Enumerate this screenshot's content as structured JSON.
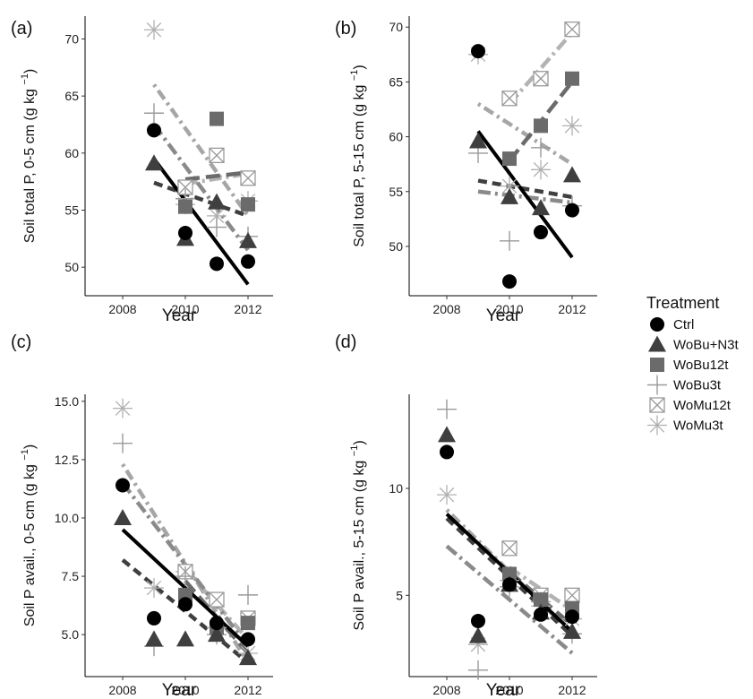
{
  "legend": {
    "title": "Treatment",
    "placement": "right",
    "items": [
      {
        "key": "Ctrl",
        "label": "Ctrl",
        "shape": "circle",
        "color": "#000000",
        "line": "solid",
        "lineColor": "#000000"
      },
      {
        "key": "WoBuN3t",
        "label": "WoBu+N3t",
        "shape": "triangle",
        "color": "#3f3f3f",
        "line": "dashed",
        "lineColor": "#3f3f3f"
      },
      {
        "key": "WoBu12t",
        "label": "WoBu12t",
        "shape": "square",
        "color": "#6b6b6b",
        "line": "dashed-long",
        "lineColor": "#6b6b6b"
      },
      {
        "key": "WoBu3t",
        "label": "WoBu3t",
        "shape": "plus",
        "color": "#9a9a9a",
        "line": "dashdot",
        "lineColor": "#8a8a8a"
      },
      {
        "key": "WoMu12t",
        "label": "WoMu12t",
        "shape": "boxcross",
        "color": "#9a9a9a",
        "line": "dashdot",
        "lineColor": "#b3b3b3"
      },
      {
        "key": "WoMu3t",
        "label": "WoMu3t",
        "shape": "asterisk",
        "color": "#b0b0b0",
        "line": "dotdash",
        "lineColor": "#a6a6a6"
      }
    ]
  },
  "chart_data": [
    {
      "type": "scatter",
      "panel": "(a)",
      "ylabel": "Soil total P, 0-5 cm",
      "yunit": "(g kg",
      "yunit_exp": "−1",
      "yunit_close": ")",
      "xlabel": "Year",
      "xlim": [
        2006.8,
        2012.8
      ],
      "ylim": [
        47.5,
        72
      ],
      "xticks": [
        2008,
        2010,
        2012
      ],
      "yticks": [
        50,
        55,
        60,
        65,
        70
      ],
      "series": [
        {
          "key": "Ctrl",
          "points": [
            [
              2009,
              62
            ],
            [
              2010,
              53
            ],
            [
              2011,
              50.3
            ],
            [
              2012,
              50.5
            ]
          ],
          "fit": [
            [
              2009,
              59.5
            ],
            [
              2012,
              48.5
            ]
          ]
        },
        {
          "key": "WoBuN3t",
          "points": [
            [
              2009,
              59.1
            ],
            [
              2010,
              52.5
            ],
            [
              2011,
              55.7
            ],
            [
              2012,
              52.3
            ]
          ],
          "fit": [
            [
              2009,
              57.4
            ],
            [
              2012,
              54.5
            ]
          ]
        },
        {
          "key": "WoBu12t",
          "points": [
            [
              2010,
              55.3
            ],
            [
              2011,
              63
            ],
            [
              2012,
              55.5
            ]
          ],
          "fit": [
            [
              2010,
              57.7
            ],
            [
              2012,
              58.3
            ]
          ]
        },
        {
          "key": "WoBu3t",
          "points": [
            [
              2009,
              63.5
            ],
            [
              2010,
              56
            ],
            [
              2011,
              53.5
            ],
            [
              2012,
              52.7
            ]
          ],
          "fit": [
            [
              2009,
              62.5
            ],
            [
              2012,
              51.5
            ]
          ]
        },
        {
          "key": "WoMu12t",
          "points": [
            [
              2010,
              57
            ],
            [
              2011,
              59.8
            ],
            [
              2012,
              57.8
            ]
          ],
          "fit": [
            [
              2010,
              57.3
            ],
            [
              2012,
              58.2
            ]
          ]
        },
        {
          "key": "WoMu3t",
          "points": [
            [
              2009,
              70.8
            ],
            [
              2010,
              55.5
            ],
            [
              2011,
              54.5
            ],
            [
              2012,
              55.8
            ]
          ],
          "fit": [
            [
              2009,
              66
            ],
            [
              2012,
              54.5
            ]
          ]
        }
      ]
    },
    {
      "type": "scatter",
      "panel": "(b)",
      "ylabel": "Soil total P, 5-15 cm",
      "yunit": "(g kg",
      "yunit_exp": "−1",
      "yunit_close": ")",
      "xlabel": "Year",
      "xlim": [
        2006.8,
        2012.8
      ],
      "ylim": [
        45.5,
        71
      ],
      "xticks": [
        2008,
        2010,
        2012
      ],
      "yticks": [
        50,
        55,
        60,
        65,
        70
      ],
      "series": [
        {
          "key": "Ctrl",
          "points": [
            [
              2009,
              67.8
            ],
            [
              2010,
              46.8
            ],
            [
              2011,
              51.3
            ],
            [
              2012,
              53.3
            ]
          ],
          "fit": [
            [
              2009,
              60.5
            ],
            [
              2012,
              49
            ]
          ]
        },
        {
          "key": "WoBuN3t",
          "points": [
            [
              2009,
              59.6
            ],
            [
              2010,
              54.5
            ],
            [
              2011,
              53.5
            ],
            [
              2012,
              56.5
            ]
          ],
          "fit": [
            [
              2009,
              56
            ],
            [
              2012,
              54.5
            ]
          ]
        },
        {
          "key": "WoBu12t",
          "points": [
            [
              2010,
              58
            ],
            [
              2011,
              61
            ],
            [
              2012,
              65.3
            ]
          ],
          "fit": [
            [
              2010,
              57.8
            ],
            [
              2012,
              65
            ]
          ]
        },
        {
          "key": "WoBu3t",
          "points": [
            [
              2009,
              58.5
            ],
            [
              2010,
              50.5
            ],
            [
              2011,
              59
            ],
            [
              2012,
              53.7
            ]
          ],
          "fit": [
            [
              2009,
              55
            ],
            [
              2012,
              54
            ]
          ]
        },
        {
          "key": "WoMu12t",
          "points": [
            [
              2010,
              63.5
            ],
            [
              2011,
              65.3
            ],
            [
              2012,
              69.8
            ]
          ],
          "fit": [
            [
              2010,
              63
            ],
            [
              2012,
              69.5
            ]
          ]
        },
        {
          "key": "WoMu3t",
          "points": [
            [
              2009,
              67.5
            ],
            [
              2010,
              55.5
            ],
            [
              2011,
              57
            ],
            [
              2012,
              61
            ]
          ],
          "fit": [
            [
              2009,
              63
            ],
            [
              2012,
              57.5
            ]
          ]
        }
      ]
    },
    {
      "type": "scatter",
      "panel": "(c)",
      "ylabel": "Soil P avail., 0-5 cm",
      "yunit": "(g kg",
      "yunit_exp": "−1",
      "yunit_close": ")",
      "xlabel": "Year",
      "xlim": [
        2006.8,
        2012.8
      ],
      "ylim": [
        3.2,
        15.3
      ],
      "xticks": [
        2008,
        2010,
        2012
      ],
      "yticks": [
        5.0,
        7.5,
        10.0,
        12.5,
        15.0
      ],
      "ytickFormat": "1",
      "series": [
        {
          "key": "Ctrl",
          "points": [
            [
              2008,
              11.4
            ],
            [
              2009,
              5.7
            ],
            [
              2010,
              6.3
            ],
            [
              2011,
              5.5
            ],
            [
              2012,
              4.8
            ]
          ],
          "fit": [
            [
              2008,
              9.5
            ],
            [
              2012,
              4.5
            ]
          ]
        },
        {
          "key": "WoBuN3t",
          "points": [
            [
              2008,
              10
            ],
            [
              2009,
              4.8
            ],
            [
              2010,
              4.8
            ],
            [
              2011,
              5
            ],
            [
              2012,
              4
            ]
          ],
          "fit": [
            [
              2008,
              8.2
            ],
            [
              2012,
              3.8
            ]
          ]
        },
        {
          "key": "WoBu12t",
          "points": [
            [
              2010,
              6.7
            ],
            [
              2011,
              5.3
            ],
            [
              2012,
              5.5
            ]
          ],
          "fit": [
            [
              2010,
              7.3
            ],
            [
              2012,
              4.2
            ]
          ]
        },
        {
          "key": "WoBu3t",
          "points": [
            [
              2008,
              13.2
            ],
            [
              2009,
              4.5
            ],
            [
              2010,
              7.5
            ],
            [
              2011,
              5
            ],
            [
              2012,
              6.7
            ]
          ],
          "fit": [
            [
              2008,
              11.5
            ],
            [
              2012,
              4.5
            ]
          ]
        },
        {
          "key": "WoMu12t",
          "points": [
            [
              2010,
              7.7
            ],
            [
              2011,
              6.5
            ],
            [
              2012,
              5.7
            ]
          ],
          "fit": [
            [
              2010,
              7.8
            ],
            [
              2012,
              4.8
            ]
          ]
        },
        {
          "key": "WoMu3t",
          "points": [
            [
              2008,
              14.7
            ],
            [
              2009,
              7
            ],
            [
              2010,
              7.7
            ],
            [
              2011,
              5.3
            ],
            [
              2012,
              4.2
            ]
          ],
          "fit": [
            [
              2008,
              12.3
            ],
            [
              2012,
              3.8
            ]
          ]
        }
      ]
    },
    {
      "type": "scatter",
      "panel": "(d)",
      "ylabel": "Soil P avail., 5-15 cm",
      "yunit": "(g kg",
      "yunit_exp": "−1",
      "yunit_close": ")",
      "xlabel": "Year",
      "xlim": [
        2006.8,
        2012.8
      ],
      "ylim": [
        1.2,
        14.4
      ],
      "xticks": [
        2008,
        2010,
        2012
      ],
      "yticks": [
        5,
        10
      ],
      "series": [
        {
          "key": "Ctrl",
          "points": [
            [
              2008,
              11.7
            ],
            [
              2009,
              3.8
            ],
            [
              2010,
              5.5
            ],
            [
              2011,
              4.1
            ],
            [
              2012,
              4
            ]
          ],
          "fit": [
            [
              2008,
              8.8
            ],
            [
              2012,
              3.3
            ]
          ]
        },
        {
          "key": "WoBuN3t",
          "points": [
            [
              2008,
              12.5
            ],
            [
              2009,
              3.1
            ],
            [
              2010,
              5.5
            ],
            [
              2011,
              4.2
            ],
            [
              2012,
              3.3
            ]
          ],
          "fit": [
            [
              2008,
              8.6
            ],
            [
              2012,
              3.1
            ]
          ]
        },
        {
          "key": "WoBu12t",
          "points": [
            [
              2010,
              6
            ],
            [
              2011,
              4.8
            ],
            [
              2012,
              4.4
            ]
          ],
          "fit": [
            [
              2010,
              6.1
            ],
            [
              2012,
              3.6
            ]
          ]
        },
        {
          "key": "WoBu3t",
          "points": [
            [
              2008,
              13.7
            ],
            [
              2009,
              1.5
            ],
            [
              2010,
              5.4
            ],
            [
              2011,
              4.7
            ],
            [
              2012,
              3.2
            ]
          ],
          "fit": [
            [
              2008,
              7.3
            ],
            [
              2012,
              2.3
            ]
          ]
        },
        {
          "key": "WoMu12t",
          "points": [
            [
              2010,
              7.2
            ],
            [
              2011,
              5
            ],
            [
              2012,
              5
            ]
          ],
          "fit": [
            [
              2010,
              6.3
            ],
            [
              2012,
              4.3
            ]
          ]
        },
        {
          "key": "WoMu3t",
          "points": [
            [
              2008,
              9.7
            ],
            [
              2009,
              2.7
            ],
            [
              2010,
              5.7
            ],
            [
              2011,
              4.5
            ],
            [
              2012,
              3.9
            ]
          ],
          "fit": [
            [
              2008,
              9
            ],
            [
              2012,
              3.2
            ]
          ]
        }
      ]
    }
  ]
}
